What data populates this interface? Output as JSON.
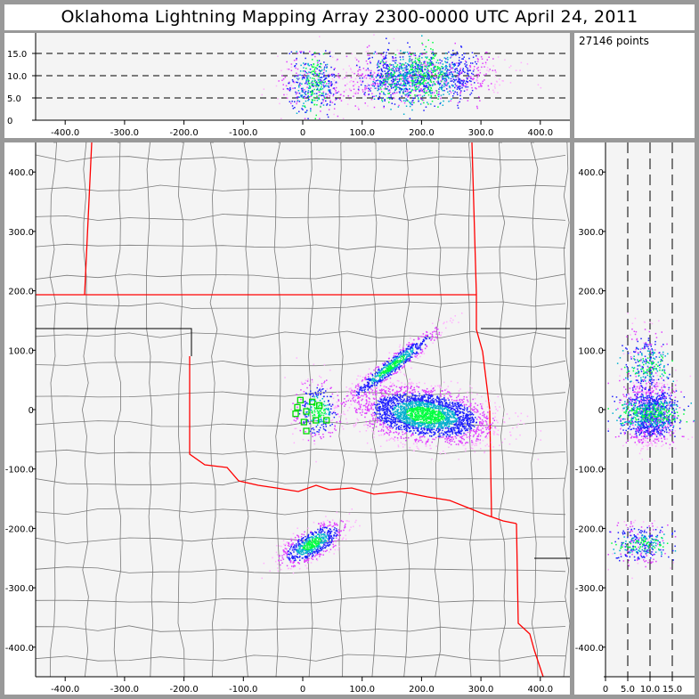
{
  "title": "Oklahoma Lightning Mapping Array   2300-0000 UTC  April 24, 2011",
  "points_label": "27146 points",
  "colors": {
    "frame": "#999999",
    "plot_bg": "#f4f4f4",
    "state_border": "#ff0000",
    "county_line": "#7a7a7a",
    "station": "#00dd00",
    "density": [
      "#ffb0ff",
      "#e040ff",
      "#2020ff",
      "#00b0d0",
      "#00ff40"
    ]
  },
  "altitude_plot": {
    "x_ticks": [
      "-400.0",
      "-300.0",
      "-200.0",
      "-100.0",
      "0",
      "100.0",
      "200.0",
      "300.0",
      "400.0"
    ],
    "x_tick_values": [
      -400,
      -300,
      -200,
      -100,
      0,
      100,
      200,
      300,
      400
    ],
    "y_ticks": [
      "0",
      "5.0",
      "10.0",
      "15.0"
    ],
    "y_tick_values": [
      0,
      5,
      10,
      15
    ],
    "dashed_levels": [
      5,
      10,
      15
    ]
  },
  "plan_view": {
    "x_ticks": [
      "-400.0",
      "-300.0",
      "-200.0",
      "-100.0",
      "0",
      "100.0",
      "200.0",
      "300.0",
      "400.0"
    ],
    "x_tick_values": [
      -400,
      -300,
      -200,
      -100,
      0,
      100,
      200,
      300,
      400
    ],
    "y_ticks": [
      "-400.0",
      "-300.0",
      "-200.0",
      "-100.0",
      "0",
      "100.0",
      "200.0",
      "300.0",
      "400.0"
    ],
    "y_tick_values": [
      -400,
      -300,
      -200,
      -100,
      0,
      100,
      200,
      300,
      400
    ]
  },
  "side_plot": {
    "x_ticks": [
      "0",
      "5.0",
      "10.0",
      "15.0"
    ],
    "x_tick_values": [
      0,
      5,
      10,
      15
    ],
    "dashed_levels": [
      5,
      10,
      15
    ]
  },
  "stations_km": [
    [
      -4,
      16
    ],
    [
      16,
      13
    ],
    [
      -9,
      4
    ],
    [
      28,
      7
    ],
    [
      6,
      -3
    ],
    [
      -12,
      -7
    ],
    [
      22,
      -18
    ],
    [
      40,
      -18
    ],
    [
      2,
      -21
    ],
    [
      6,
      -36
    ]
  ],
  "lightning_sources": [
    {
      "x": 205,
      "y": -8,
      "sx": 55,
      "sy": 22,
      "z": 10,
      "sz": 2.8,
      "n": 2600,
      "rot": -8
    },
    {
      "x": 150,
      "y": 75,
      "sx": 50,
      "sy": 7,
      "z": 9,
      "sz": 2.5,
      "n": 700,
      "rot": 38
    },
    {
      "x": 15,
      "y": -225,
      "sx": 12,
      "sy": 30,
      "z": 8,
      "sz": 3,
      "n": 700,
      "rot": -60
    },
    {
      "x": 25,
      "y": 0,
      "sx": 20,
      "sy": 25,
      "z": 9,
      "sz": 3.5,
      "n": 300,
      "rot": 0
    }
  ]
}
